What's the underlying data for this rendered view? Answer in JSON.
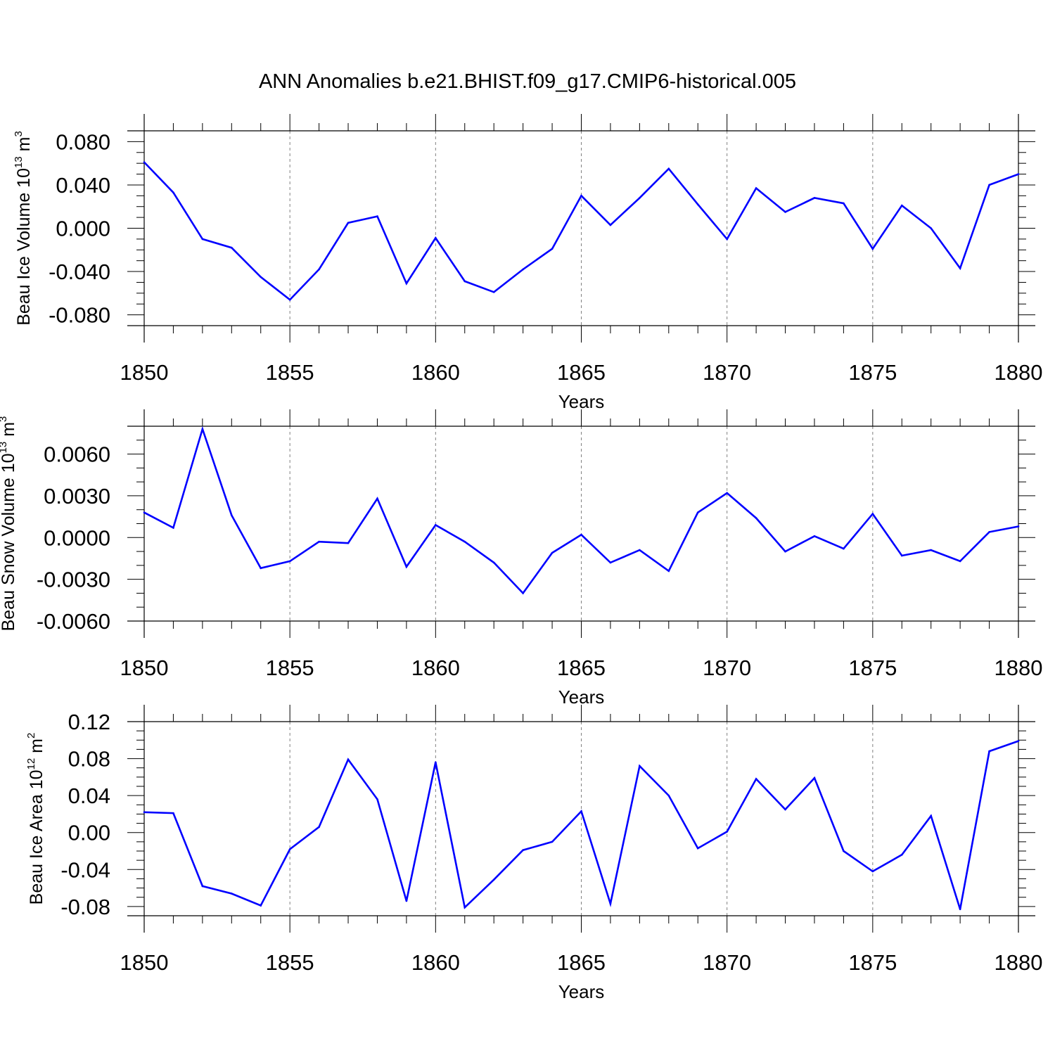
{
  "figure_title": "ANN Anomalies b.e21.BHIST.f09_g17.CMIP6-historical.005",
  "colors": {
    "line": "#0000ff",
    "axis": "#000000",
    "grid": "#808080",
    "background": "#ffffff"
  },
  "chart_data": [
    {
      "type": "line",
      "title": "ANN Anomalies b.e21.BHIST.f09_g17.CMIP6-historical.005",
      "xlabel": "Years",
      "ylabel": {
        "text": "Beau Ice Volume 10",
        "sup1": "13",
        "unit": " m",
        "sup2": "3"
      },
      "xlim": [
        1850,
        1880
      ],
      "ylim": [
        -0.09,
        0.09
      ],
      "x_ticks": [
        1850,
        1855,
        1860,
        1865,
        1870,
        1875,
        1880
      ],
      "x_tick_labels": [
        "1850",
        "1855",
        "1860",
        "1865",
        "1870",
        "1875",
        "1880"
      ],
      "y_ticks": [
        -0.08,
        -0.04,
        0.0,
        0.04,
        0.08
      ],
      "y_tick_labels": [
        "-0.080",
        "-0.040",
        "0.000",
        "0.040",
        "0.080"
      ],
      "y_minor_step": 0.01,
      "grid": "vertical-dashed",
      "series": [
        {
          "name": "Beau Ice Volume",
          "x": [
            1850,
            1851,
            1852,
            1853,
            1854,
            1855,
            1856,
            1857,
            1858,
            1859,
            1860,
            1861,
            1862,
            1863,
            1864,
            1865,
            1866,
            1867,
            1868,
            1869,
            1870,
            1871,
            1872,
            1873,
            1874,
            1875,
            1876,
            1877,
            1878,
            1879,
            1880
          ],
          "values": [
            0.061,
            0.033,
            -0.01,
            -0.018,
            -0.045,
            -0.066,
            -0.038,
            0.005,
            0.011,
            -0.051,
            -0.009,
            -0.049,
            -0.059,
            -0.038,
            -0.019,
            0.03,
            0.003,
            0.028,
            0.055,
            0.022,
            -0.01,
            0.037,
            0.015,
            0.028,
            0.023,
            -0.019,
            0.021,
            0.0,
            -0.037,
            0.04,
            0.05
          ]
        }
      ]
    },
    {
      "type": "line",
      "xlabel": "Years",
      "ylabel": {
        "text": "Beau Snow Volume 10",
        "sup1": "13",
        "unit": " m",
        "sup2": "3"
      },
      "xlim": [
        1850,
        1880
      ],
      "ylim": [
        -0.006,
        0.008
      ],
      "x_ticks": [
        1850,
        1855,
        1860,
        1865,
        1870,
        1875,
        1880
      ],
      "x_tick_labels": [
        "1850",
        "1855",
        "1860",
        "1865",
        "1870",
        "1875",
        "1880"
      ],
      "y_ticks": [
        -0.006,
        -0.003,
        0.0,
        0.003,
        0.006
      ],
      "y_tick_labels": [
        "-0.0060",
        "-0.0030",
        "0.0000",
        "0.0030",
        "0.0060"
      ],
      "y_minor_step": 0.001,
      "grid": "vertical-dashed",
      "series": [
        {
          "name": "Beau Snow Volume",
          "x": [
            1850,
            1851,
            1852,
            1853,
            1854,
            1855,
            1856,
            1857,
            1858,
            1859,
            1860,
            1861,
            1862,
            1863,
            1864,
            1865,
            1866,
            1867,
            1868,
            1869,
            1870,
            1871,
            1872,
            1873,
            1874,
            1875,
            1876,
            1877,
            1878,
            1879,
            1880
          ],
          "values": [
            0.0018,
            0.0007,
            0.0078,
            0.0016,
            -0.0022,
            -0.0017,
            -0.0003,
            -0.0004,
            0.0028,
            -0.0021,
            0.0009,
            -0.0003,
            -0.0018,
            -0.004,
            -0.0011,
            0.0002,
            -0.0018,
            -0.0009,
            -0.0024,
            0.0018,
            0.0032,
            0.0014,
            -0.001,
            0.0001,
            -0.0008,
            0.0017,
            -0.0013,
            -0.0009,
            -0.0017,
            0.0004,
            0.0008
          ]
        }
      ]
    },
    {
      "type": "line",
      "xlabel": "Years",
      "ylabel": {
        "text": "Beau Ice Area 10",
        "sup1": "12",
        "unit": " m",
        "sup2": "2"
      },
      "xlim": [
        1850,
        1880
      ],
      "ylim": [
        -0.09,
        0.12
      ],
      "x_ticks": [
        1850,
        1855,
        1860,
        1865,
        1870,
        1875,
        1880
      ],
      "x_tick_labels": [
        "1850",
        "1855",
        "1860",
        "1865",
        "1870",
        "1875",
        "1880"
      ],
      "y_ticks": [
        -0.08,
        -0.04,
        0.0,
        0.04,
        0.08,
        0.12
      ],
      "y_tick_labels": [
        "-0.08",
        "-0.04",
        "0.00",
        "0.04",
        "0.08",
        "0.12"
      ],
      "y_minor_step": 0.01,
      "grid": "vertical-dashed",
      "series": [
        {
          "name": "Beau Ice Area",
          "x": [
            1850,
            1851,
            1852,
            1853,
            1854,
            1855,
            1856,
            1857,
            1858,
            1859,
            1860,
            1861,
            1862,
            1863,
            1864,
            1865,
            1866,
            1867,
            1868,
            1869,
            1870,
            1871,
            1872,
            1873,
            1874,
            1875,
            1876,
            1877,
            1878,
            1879,
            1880
          ],
          "values": [
            0.022,
            0.021,
            -0.058,
            -0.066,
            -0.079,
            -0.018,
            0.006,
            0.079,
            0.036,
            -0.074,
            0.076,
            -0.081,
            -0.051,
            -0.019,
            -0.01,
            0.023,
            -0.077,
            0.072,
            0.04,
            -0.017,
            0.001,
            0.058,
            0.025,
            0.059,
            -0.02,
            -0.042,
            -0.024,
            0.018,
            -0.083,
            0.088,
            0.099
          ]
        }
      ]
    }
  ]
}
